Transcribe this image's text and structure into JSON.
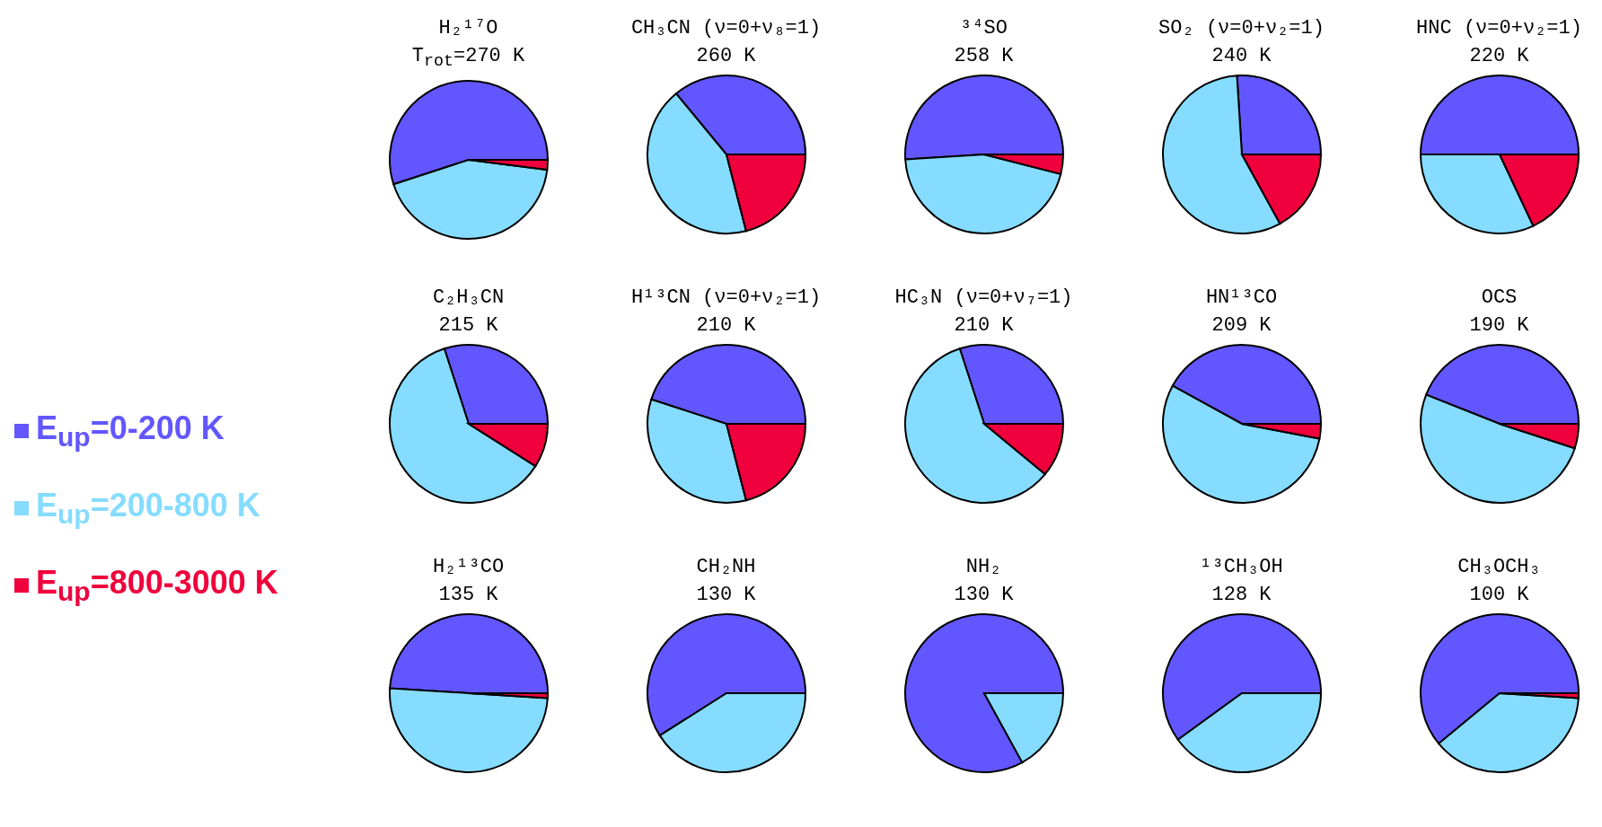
{
  "chart_data": [
    {
      "type": "pie",
      "title": "H₂¹⁷O",
      "subtitle": "T$_{rot}$=270 K",
      "categories": [
        "E$_{up}$=0-200 K",
        "E$_{up}$=200-800 K",
        "E$_{up}$=800-3000 K"
      ],
      "values": [
        55,
        43,
        2
      ],
      "colors": [
        "#6257ff",
        "#85dcff",
        "#f0003c"
      ],
      "legend": "left"
    },
    {
      "type": "pie",
      "title": "CH₃CN (ν=0+ν₈=1)",
      "subtitle": "260 K",
      "values": [
        36,
        43,
        21
      ],
      "colors": [
        "#6257ff",
        "#85dcff",
        "#f0003c"
      ]
    },
    {
      "type": "pie",
      "title": "³⁴SO",
      "subtitle": "258 K",
      "values": [
        51,
        45,
        4
      ],
      "colors": [
        "#6257ff",
        "#85dcff",
        "#f0003c"
      ]
    },
    {
      "type": "pie",
      "title": "SO₂ (ν=0+ν₂=1)",
      "subtitle": "240 K",
      "values": [
        26,
        57,
        17
      ],
      "colors": [
        "#6257ff",
        "#85dcff",
        "#f0003c"
      ]
    },
    {
      "type": "pie",
      "title": "HNC (ν=0+ν₂=1)",
      "subtitle": "220 K",
      "values": [
        50,
        32,
        18
      ],
      "colors": [
        "#6257ff",
        "#85dcff",
        "#f0003c"
      ]
    },
    {
      "type": "pie",
      "title": "C₂H₃CN",
      "subtitle": "215 K",
      "values": [
        30,
        61,
        9
      ],
      "colors": [
        "#6257ff",
        "#85dcff",
        "#f0003c"
      ]
    },
    {
      "type": "pie",
      "title": "H¹³CN (ν=0+ν₂=1)",
      "subtitle": "210 K",
      "values": [
        45,
        34,
        21
      ],
      "colors": [
        "#6257ff",
        "#85dcff",
        "#f0003c"
      ]
    },
    {
      "type": "pie",
      "title": "HC₃N (ν=0+ν₇=1)",
      "subtitle": "210 K",
      "values": [
        30,
        59,
        11
      ],
      "colors": [
        "#6257ff",
        "#85dcff",
        "#f0003c"
      ]
    },
    {
      "type": "pie",
      "title": "HN¹³CO",
      "subtitle": "209 K",
      "values": [
        42,
        55,
        3
      ],
      "colors": [
        "#6257ff",
        "#85dcff",
        "#f0003c"
      ]
    },
    {
      "type": "pie",
      "title": "OCS",
      "subtitle": "190 K",
      "values": [
        44,
        51,
        5
      ],
      "colors": [
        "#6257ff",
        "#85dcff",
        "#f0003c"
      ]
    },
    {
      "type": "pie",
      "title": "H₂¹³CO",
      "subtitle": "135 K",
      "values": [
        49,
        50,
        1
      ],
      "colors": [
        "#6257ff",
        "#85dcff",
        "#f0003c"
      ]
    },
    {
      "type": "pie",
      "title": "CH₂NH",
      "subtitle": "130 K",
      "values": [
        59,
        41,
        0
      ],
      "colors": [
        "#6257ff",
        "#85dcff",
        "#f0003c"
      ]
    },
    {
      "type": "pie",
      "title": "NH₂",
      "subtitle": "130 K",
      "values": [
        83,
        17,
        0
      ],
      "colors": [
        "#6257ff",
        "#85dcff",
        "#f0003c"
      ]
    },
    {
      "type": "pie",
      "title": "¹³CH₃OH",
      "subtitle": "128 K",
      "values": [
        60,
        40,
        0
      ],
      "colors": [
        "#6257ff",
        "#85dcff",
        "#f0003c"
      ]
    },
    {
      "type": "pie",
      "title": "CH₃OCH₃",
      "subtitle": "100 K",
      "values": [
        61,
        38,
        1
      ],
      "colors": [
        "#6257ff",
        "#85dcff",
        "#f0003c"
      ]
    }
  ]
}
